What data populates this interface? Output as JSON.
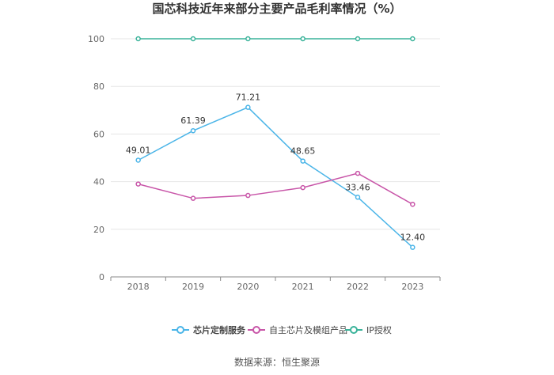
{
  "chart_data": {
    "type": "line",
    "title": "国芯科技近年来部分主要产品毛利率情况（%）",
    "categories": [
      "2018",
      "2019",
      "2020",
      "2021",
      "2022",
      "2023"
    ],
    "ylim": [
      0,
      100
    ],
    "yticks": [
      0,
      20,
      40,
      60,
      80,
      100
    ],
    "grid": true,
    "legend_position": "bottom",
    "series": [
      {
        "name": "芯片定制服务",
        "color": "#4bb5e8",
        "values": [
          49.01,
          61.39,
          71.21,
          48.65,
          33.46,
          12.4
        ],
        "labels": [
          "49.01",
          "61.39",
          "71.21",
          "48.65",
          "33.46",
          "12.40"
        ]
      },
      {
        "name": "自主芯片及模组产品",
        "color": "#c855a8",
        "values": [
          39.0,
          33.0,
          34.2,
          37.5,
          43.5,
          30.5
        ]
      },
      {
        "name": "IP授权",
        "color": "#3ab39a",
        "values": [
          100,
          100,
          100,
          100,
          100,
          100
        ]
      }
    ],
    "source": "数据来源：恒生聚源"
  }
}
